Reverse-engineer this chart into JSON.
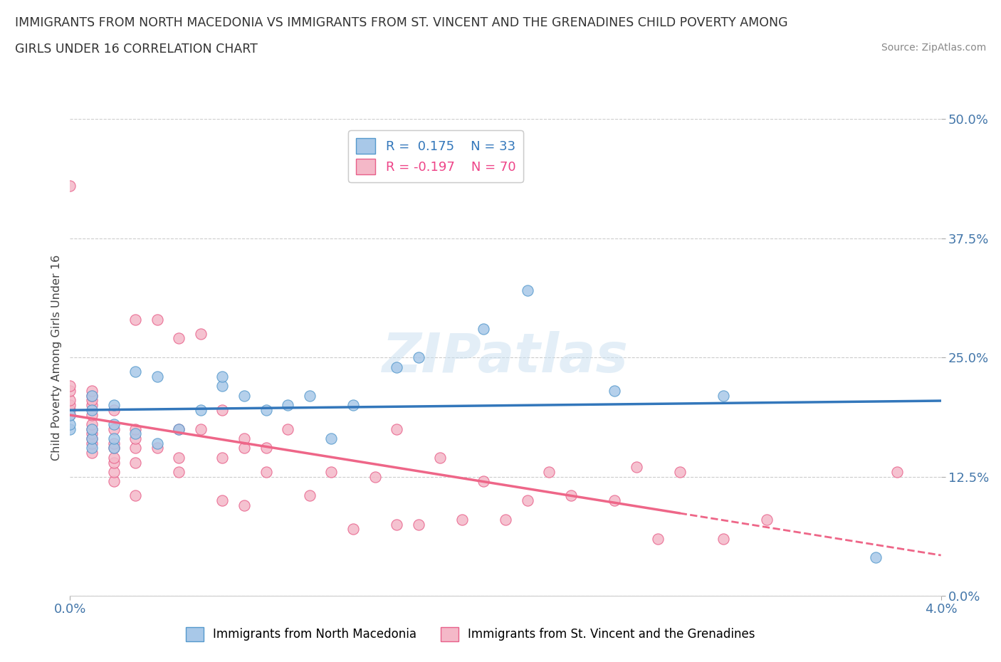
{
  "title_line1": "IMMIGRANTS FROM NORTH MACEDONIA VS IMMIGRANTS FROM ST. VINCENT AND THE GRENADINES CHILD POVERTY AMONG",
  "title_line2": "GIRLS UNDER 16 CORRELATION CHART",
  "source_text": "Source: ZipAtlas.com",
  "ylabel": "Child Poverty Among Girls Under 16",
  "xlim": [
    0.0,
    0.04
  ],
  "ylim": [
    0.0,
    0.5
  ],
  "xtick_labels": [
    "0.0%",
    "4.0%"
  ],
  "ytick_labels": [
    "0.0%",
    "12.5%",
    "25.0%",
    "37.5%",
    "50.0%"
  ],
  "ytick_values": [
    0.0,
    0.125,
    0.25,
    0.375,
    0.5
  ],
  "color_blue": "#a8c8e8",
  "color_pink": "#f4b8c8",
  "color_blue_edge": "#5599cc",
  "color_pink_edge": "#e8608a",
  "color_blue_line": "#3377bb",
  "color_pink_line": "#ee6688",
  "color_tick": "#4477aa",
  "legend_blue_R": "0.175",
  "legend_blue_N": "33",
  "legend_pink_R": "-0.197",
  "legend_pink_N": "70",
  "watermark": "ZIPatlas",
  "blue_scatter_x": [
    0.0,
    0.0,
    0.0,
    0.001,
    0.001,
    0.001,
    0.001,
    0.001,
    0.002,
    0.002,
    0.002,
    0.002,
    0.003,
    0.003,
    0.004,
    0.004,
    0.005,
    0.006,
    0.007,
    0.007,
    0.008,
    0.009,
    0.01,
    0.011,
    0.012,
    0.013,
    0.015,
    0.016,
    0.019,
    0.021,
    0.025,
    0.03,
    0.037
  ],
  "blue_scatter_y": [
    0.175,
    0.18,
    0.19,
    0.155,
    0.165,
    0.175,
    0.195,
    0.21,
    0.155,
    0.165,
    0.18,
    0.2,
    0.17,
    0.235,
    0.16,
    0.23,
    0.175,
    0.195,
    0.22,
    0.23,
    0.21,
    0.195,
    0.2,
    0.21,
    0.165,
    0.2,
    0.24,
    0.25,
    0.28,
    0.32,
    0.215,
    0.21,
    0.04
  ],
  "pink_scatter_x": [
    0.0,
    0.0,
    0.0,
    0.0,
    0.0,
    0.0,
    0.0,
    0.001,
    0.001,
    0.001,
    0.001,
    0.001,
    0.001,
    0.001,
    0.001,
    0.001,
    0.001,
    0.001,
    0.002,
    0.002,
    0.002,
    0.002,
    0.002,
    0.002,
    0.002,
    0.002,
    0.003,
    0.003,
    0.003,
    0.003,
    0.003,
    0.003,
    0.004,
    0.004,
    0.005,
    0.005,
    0.005,
    0.005,
    0.006,
    0.006,
    0.007,
    0.007,
    0.007,
    0.008,
    0.008,
    0.008,
    0.009,
    0.009,
    0.01,
    0.011,
    0.012,
    0.013,
    0.014,
    0.015,
    0.015,
    0.016,
    0.017,
    0.018,
    0.019,
    0.02,
    0.021,
    0.022,
    0.023,
    0.025,
    0.026,
    0.027,
    0.028,
    0.03,
    0.032,
    0.038
  ],
  "pink_scatter_y": [
    0.19,
    0.195,
    0.2,
    0.205,
    0.215,
    0.22,
    0.43,
    0.15,
    0.16,
    0.165,
    0.17,
    0.175,
    0.18,
    0.19,
    0.2,
    0.205,
    0.21,
    0.215,
    0.12,
    0.13,
    0.14,
    0.145,
    0.155,
    0.16,
    0.175,
    0.195,
    0.105,
    0.14,
    0.155,
    0.165,
    0.175,
    0.29,
    0.155,
    0.29,
    0.13,
    0.145,
    0.175,
    0.27,
    0.175,
    0.275,
    0.1,
    0.145,
    0.195,
    0.095,
    0.155,
    0.165,
    0.13,
    0.155,
    0.175,
    0.105,
    0.13,
    0.07,
    0.125,
    0.075,
    0.175,
    0.075,
    0.145,
    0.08,
    0.12,
    0.08,
    0.1,
    0.13,
    0.105,
    0.1,
    0.135,
    0.06,
    0.13,
    0.06,
    0.08,
    0.13
  ]
}
